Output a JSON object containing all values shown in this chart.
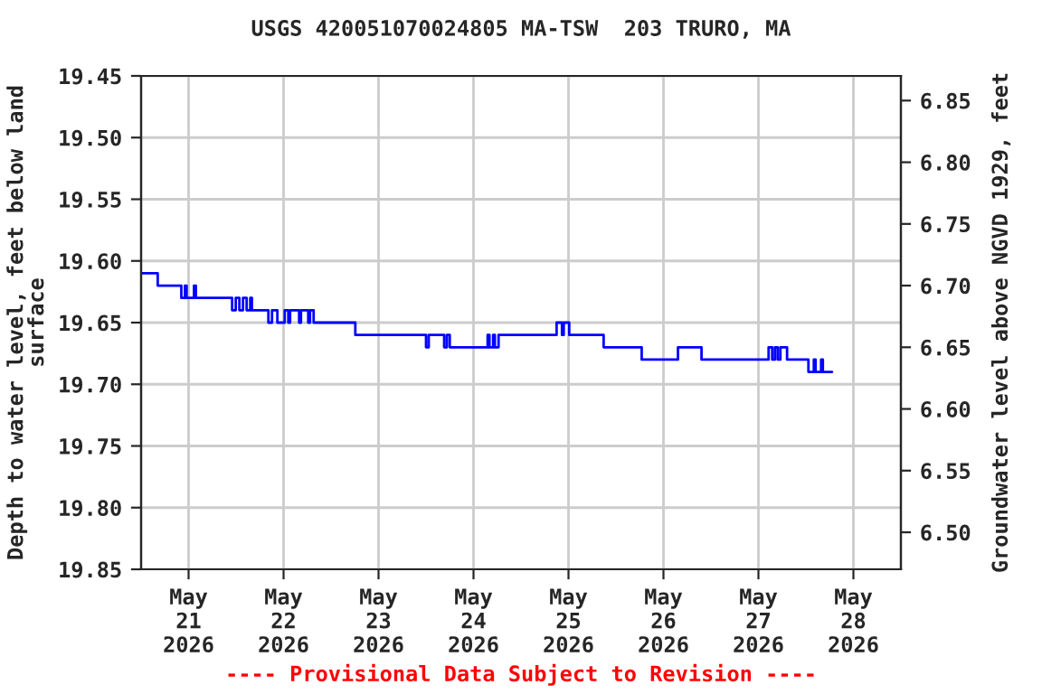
{
  "chart_data": {
    "type": "step",
    "title": "USGS 420051070024805 MA-TSW  203 TRURO, MA",
    "ylabel": "Depth to water level, feet below land\nsurface",
    "y2label": "Groundwater level above NGVD 1929, feet",
    "annotations": [
      "---- Provisional Data Subject to Revision ----"
    ],
    "series": [
      {
        "color": "#0000ff",
        "x": [
          "2026-05-20T12:00",
          "2026-05-20T16:12",
          "2026-05-20T22:10",
          "2026-05-20T23:05",
          "2026-05-20T23:30",
          "2026-05-21T01:22",
          "2026-05-21T01:50",
          "2026-05-21T11:00",
          "2026-05-21T11:55",
          "2026-05-21T12:50",
          "2026-05-21T13:45",
          "2026-05-21T14:40",
          "2026-05-21T15:35",
          "2026-05-21T16:00",
          "2026-05-21T20:10",
          "2026-05-21T21:05",
          "2026-05-21T22:26",
          "2026-05-22T00:17",
          "2026-05-22T01:12",
          "2026-05-22T01:39",
          "2026-05-22T03:56",
          "2026-05-22T04:24",
          "2026-05-22T06:14",
          "2026-05-22T06:41",
          "2026-05-22T07:36",
          "2026-05-22T18:08",
          "2026-05-23T12:00",
          "2026-05-23T12:41",
          "2026-05-23T16:35",
          "2026-05-23T17:16",
          "2026-05-23T18:00",
          "2026-05-24T03:34",
          "2026-05-24T04:02",
          "2026-05-24T04:57",
          "2026-05-24T05:24",
          "2026-05-24T06:20",
          "2026-05-24T21:00",
          "2026-05-24T22:21",
          "2026-05-24T22:48",
          "2026-05-25T00:11",
          "2026-05-25T08:53",
          "2026-05-25T18:30",
          "2026-05-26T03:40",
          "2026-05-26T09:37",
          "2026-05-27T02:34",
          "2026-05-27T03:29",
          "2026-05-27T04:10",
          "2026-05-27T04:52",
          "2026-05-27T05:33",
          "2026-05-27T07:14",
          "2026-05-27T12:38",
          "2026-05-27T14:00",
          "2026-05-27T14:27",
          "2026-05-27T15:50",
          "2026-05-27T16:17",
          "2026-05-27T18:36"
        ],
        "values": [
          19.61,
          19.62,
          19.63,
          19.62,
          19.63,
          19.62,
          19.63,
          19.64,
          19.63,
          19.64,
          19.63,
          19.64,
          19.63,
          19.64,
          19.65,
          19.64,
          19.65,
          19.64,
          19.65,
          19.64,
          19.65,
          19.64,
          19.65,
          19.64,
          19.65,
          19.66,
          19.67,
          19.66,
          19.67,
          19.66,
          19.67,
          19.66,
          19.67,
          19.66,
          19.67,
          19.66,
          19.65,
          19.66,
          19.65,
          19.66,
          19.67,
          19.68,
          19.67,
          19.68,
          19.67,
          19.68,
          19.67,
          19.68,
          19.67,
          19.68,
          19.69,
          19.68,
          19.69,
          19.68,
          19.69,
          19.69
        ]
      }
    ],
    "xlim": [
      "2026-05-20T12:00",
      "2026-05-28T12:00"
    ],
    "xticks": [
      {
        "value": "2026-05-21",
        "label": "May\n21\n2026"
      },
      {
        "value": "2026-05-22",
        "label": "May\n22\n2026"
      },
      {
        "value": "2026-05-23",
        "label": "May\n23\n2026"
      },
      {
        "value": "2026-05-24",
        "label": "May\n24\n2026"
      },
      {
        "value": "2026-05-25",
        "label": "May\n25\n2026"
      },
      {
        "value": "2026-05-26",
        "label": "May\n26\n2026"
      },
      {
        "value": "2026-05-27",
        "label": "May\n27\n2026"
      },
      {
        "value": "2026-05-28",
        "label": "May\n28\n2026"
      }
    ],
    "ylim": [
      19.85,
      19.45
    ],
    "yticks": [
      {
        "value": 19.45,
        "label": "19.45"
      },
      {
        "value": 19.5,
        "label": "19.50"
      },
      {
        "value": 19.55,
        "label": "19.55"
      },
      {
        "value": 19.6,
        "label": "19.60"
      },
      {
        "value": 19.65,
        "label": "19.65"
      },
      {
        "value": 19.7,
        "label": "19.70"
      },
      {
        "value": 19.75,
        "label": "19.75"
      },
      {
        "value": 19.8,
        "label": "19.80"
      },
      {
        "value": 19.85,
        "label": "19.85"
      }
    ],
    "y2lim": [
      6.47,
      6.87
    ],
    "y2ticks": [
      {
        "value": 6.5,
        "label": "6.50"
      },
      {
        "value": 6.55,
        "label": "6.55"
      },
      {
        "value": 6.6,
        "label": "6.60"
      },
      {
        "value": 6.65,
        "label": "6.65"
      },
      {
        "value": 6.7,
        "label": "6.70"
      },
      {
        "value": 6.75,
        "label": "6.75"
      },
      {
        "value": 6.8,
        "label": "6.80"
      },
      {
        "value": 6.85,
        "label": "6.85"
      }
    ],
    "grid": true,
    "legend": false
  }
}
